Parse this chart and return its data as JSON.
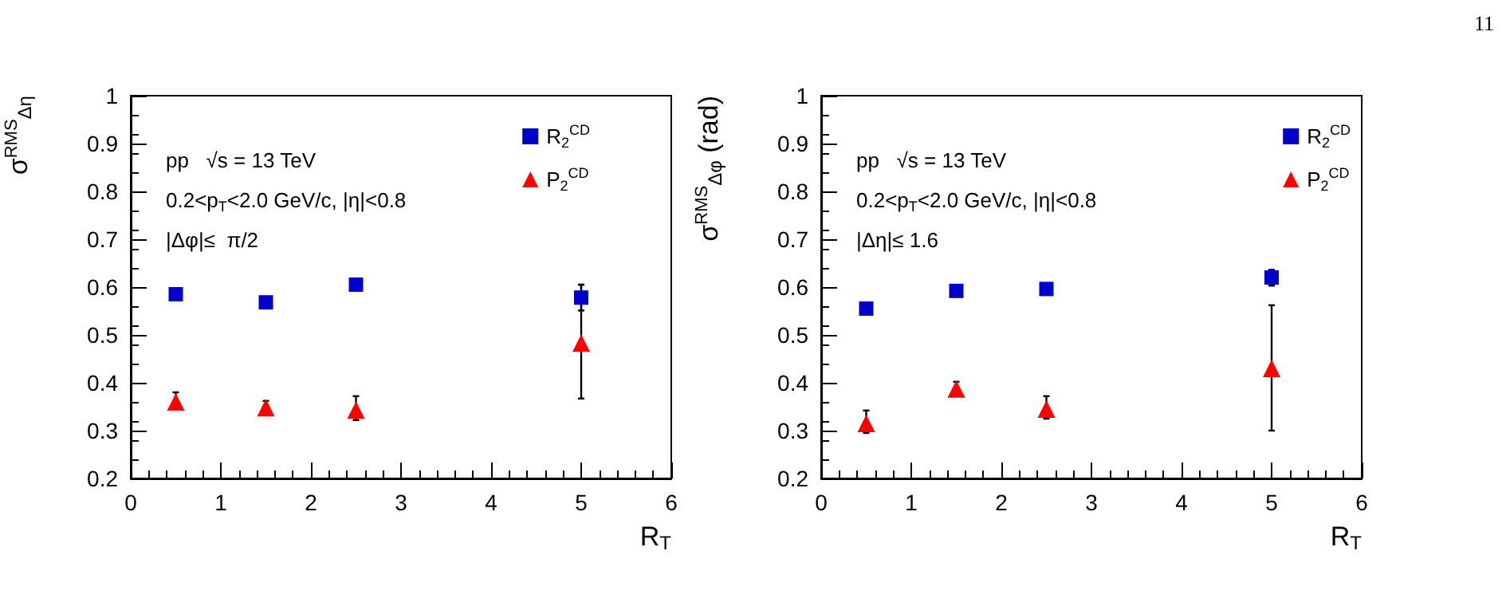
{
  "chart_data": [
    {
      "type": "scatter",
      "xlabel": "R$_{T}$",
      "ylabel": "σ$^{RMS}$$_{Δη}$",
      "annotations": [
        "pp   √s = 13 TeV",
        "0.2<p$_{T}$<2.0 GeV/c, |η|<0.8",
        "|Δφ|≤  π/2"
      ],
      "x": [
        0.5,
        1.5,
        2.5,
        5
      ],
      "series": [
        {
          "name": "R$_{2}$$^{CD}$",
          "color": "#0000cc",
          "marker": "square",
          "values": [
            0.585,
            0.568,
            0.605,
            0.578
          ],
          "errors": [
            null,
            null,
            null,
            0.027
          ]
        },
        {
          "name": "P$_{2}$$^{CD}$",
          "color": "#ff0000",
          "marker": "triangle",
          "values": [
            0.36,
            0.348,
            0.343,
            0.483
          ],
          "errors": [
            [
              0.345,
              0.38
            ],
            [
              0.338,
              0.362
            ],
            [
              0.322,
              0.372
            ],
            [
              0.367,
              0.605
            ]
          ]
        }
      ],
      "xlim": [
        0,
        6
      ],
      "xticks": [
        0,
        1,
        2,
        3,
        4,
        5,
        6
      ],
      "ylim": [
        0.2,
        1
      ],
      "yticks": [
        0.2,
        0.3,
        0.4,
        0.5,
        0.6,
        0.7,
        0.8,
        0.9,
        1
      ],
      "grid": false,
      "legend": "top right"
    },
    {
      "type": "scatter",
      "xlabel": "R$_{T}$",
      "ylabel": "σ$^{RMS}$$_{Δφ}$ (rad)",
      "annotations": [
        "pp   √s = 13 TeV",
        "0.2<p$_{T}$<2.0 GeV/c, |η|<0.8",
        "|Δη|≤ 1.6",
        "11"
      ],
      "x": [
        0.5,
        1.5,
        2.5,
        5
      ],
      "series": [
        {
          "name": "R$_{2}$$^{CD}$",
          "color": "#0000cc",
          "marker": "square",
          "values": [
            0.555,
            0.592,
            0.596,
            0.62
          ],
          "errors": [
            null,
            null,
            null,
            [
              0.603,
              0.636
            ]
          ]
        },
        {
          "name": "P$_{2}$$^{CD}$",
          "color": "#ff0000",
          "marker": "triangle",
          "values": [
            0.315,
            0.387,
            0.345,
            0.43
          ],
          "errors": [
            [
              0.295,
              0.342
            ],
            [
              0.376,
              0.402
            ],
            [
              0.325,
              0.372
            ],
            [
              0.3,
              0.562
            ]
          ]
        }
      ],
      "xlim": [
        0,
        6
      ],
      "xticks": [
        0,
        1,
        2,
        3,
        4,
        5,
        6
      ],
      "ylim": [
        0.2,
        1
      ],
      "yticks": [
        0.2,
        0.3,
        0.4,
        0.5,
        0.6,
        0.7,
        0.8,
        0.9,
        1
      ],
      "grid": false,
      "legend": "top right"
    }
  ]
}
